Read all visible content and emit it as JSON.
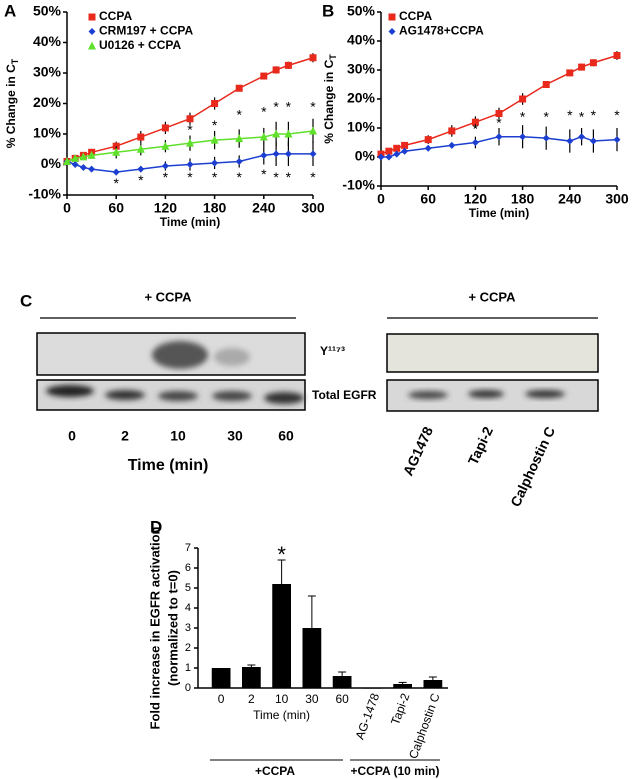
{
  "chart_data": [
    {
      "type": "line",
      "panel_label": "A",
      "xlabel": "Time (min)",
      "ylabel": "% Change in C",
      "ylabel_sub": "T",
      "x": [
        0,
        10,
        20,
        30,
        60,
        90,
        120,
        150,
        180,
        210,
        240,
        255,
        270,
        300
      ],
      "xlim": [
        0,
        300
      ],
      "xticks": [
        0,
        60,
        120,
        180,
        240,
        300
      ],
      "ylim": [
        -10,
        50
      ],
      "yticks": [
        {
          "value": -10,
          "label": "-10%"
        },
        {
          "value": 0,
          "label": "0%"
        },
        {
          "value": 10,
          "label": "10%"
        },
        {
          "value": 20,
          "label": "20%"
        },
        {
          "value": 30,
          "label": "30%"
        },
        {
          "value": 40,
          "label": "40%"
        },
        {
          "value": 50,
          "label": "50%"
        }
      ],
      "series": [
        {
          "name": "CCPA",
          "color": "#e8291c",
          "marker": "square",
          "values": [
            1,
            2,
            3,
            4,
            6,
            9,
            12,
            15,
            20,
            25,
            29,
            31,
            32.5,
            35
          ],
          "errors": [
            0.5,
            0.5,
            0.5,
            0.7,
            1.5,
            2,
            2,
            2,
            2,
            1,
            1,
            1.2,
            1.2,
            1.5
          ]
        },
        {
          "name": "CRM197 + CCPA",
          "color": "#1c3fd1",
          "marker": "diamond",
          "values": [
            1,
            0,
            -1,
            -1.5,
            -2.5,
            -1.5,
            -0.5,
            0,
            0.5,
            1,
            3,
            3.5,
            3.5,
            3.5
          ],
          "errors": [
            0.5,
            0.5,
            0.5,
            0.5,
            1,
            1,
            1.5,
            2,
            2,
            2,
            3,
            4,
            4,
            4
          ]
        },
        {
          "name": "U0126 + CCPA",
          "color": "#5fe02a",
          "marker": "triangle",
          "values": [
            1,
            2,
            2.5,
            3,
            4,
            5,
            6,
            7,
            8,
            8.5,
            9,
            10,
            10,
            11
          ],
          "errors": [
            0.5,
            0.5,
            0.5,
            0.7,
            2,
            2,
            2,
            2.5,
            3,
            3,
            3,
            4,
            4,
            4
          ]
        }
      ],
      "annotations": [
        {
          "text": "*",
          "x": 60,
          "y": -5.5
        },
        {
          "text": "*",
          "x": 90,
          "y": -4.5
        },
        {
          "text": "*",
          "x": 120,
          "y": -3.5
        },
        {
          "text": "*",
          "x": 150,
          "y": -3.5
        },
        {
          "text": "*",
          "x": 180,
          "y": -3.5
        },
        {
          "text": "*",
          "x": 210,
          "y": -3.5
        },
        {
          "text": "*",
          "x": 240,
          "y": -2.5
        },
        {
          "text": "*",
          "x": 255,
          "y": -3.5
        },
        {
          "text": "*",
          "x": 270,
          "y": -3.5
        },
        {
          "text": "*",
          "x": 300,
          "y": -3.5
        },
        {
          "text": "*",
          "x": 150,
          "y": 12
        },
        {
          "text": "*",
          "x": 180,
          "y": 13.5
        },
        {
          "text": "*",
          "x": 210,
          "y": 17
        },
        {
          "text": "*",
          "x": 240,
          "y": 18
        },
        {
          "text": "*",
          "x": 255,
          "y": 19.5
        },
        {
          "text": "*",
          "x": 270,
          "y": 19.5
        },
        {
          "text": "*",
          "x": 300,
          "y": 19.5
        }
      ]
    },
    {
      "type": "line",
      "panel_label": "B",
      "xlabel": "Time (min)",
      "ylabel": "% Change in C",
      "ylabel_sub": "T",
      "x": [
        0,
        10,
        20,
        30,
        60,
        90,
        120,
        150,
        180,
        210,
        240,
        255,
        270,
        300
      ],
      "xlim": [
        0,
        300
      ],
      "xticks": [
        0,
        60,
        120,
        180,
        240,
        300
      ],
      "ylim": [
        -10,
        50
      ],
      "yticks": [
        {
          "value": -10,
          "label": "-10%"
        },
        {
          "value": 0,
          "label": "0%"
        },
        {
          "value": 10,
          "label": "10%"
        },
        {
          "value": 20,
          "label": "20%"
        },
        {
          "value": 30,
          "label": "30%"
        },
        {
          "value": 40,
          "label": "40%"
        },
        {
          "value": 50,
          "label": "50%"
        }
      ],
      "series": [
        {
          "name": "CCPA",
          "color": "#e8291c",
          "marker": "square",
          "values": [
            1,
            2,
            3,
            4,
            6,
            9,
            12,
            15,
            20,
            25,
            29,
            31,
            32.5,
            35
          ],
          "errors": [
            0.5,
            0.5,
            0.5,
            0.7,
            1.5,
            2,
            2,
            2,
            2,
            1,
            1,
            1.2,
            1.2,
            1.5
          ]
        },
        {
          "name": "AG1478+CCPA",
          "color": "#1c3fd1",
          "marker": "diamond",
          "values": [
            0,
            0,
            1,
            2,
            3,
            4,
            5,
            7,
            7,
            6.5,
            5.5,
            7,
            5.5,
            6
          ],
          "errors": [
            0.5,
            0.5,
            0.5,
            0.5,
            1,
            1,
            2,
            3,
            4,
            4,
            4,
            3,
            4,
            4
          ]
        }
      ],
      "annotations": [
        {
          "text": "*",
          "x": 120,
          "y": 10.5
        },
        {
          "text": "*",
          "x": 150,
          "y": 12.5
        },
        {
          "text": "*",
          "x": 180,
          "y": 14.5
        },
        {
          "text": "*",
          "x": 210,
          "y": 14.5
        },
        {
          "text": "*",
          "x": 240,
          "y": 15
        },
        {
          "text": "*",
          "x": 255,
          "y": 14.5
        },
        {
          "text": "*",
          "x": 270,
          "y": 15
        },
        {
          "text": "*",
          "x": 300,
          "y": 15
        }
      ]
    },
    {
      "type": "bar",
      "panel_label": "D",
      "ylabel": "Fold increase in EGFR activation",
      "ylabel2": "(normalized to t=0)",
      "xlabel": "Time (min)",
      "categories": [
        "0",
        "2",
        "10",
        "30",
        "60",
        "AG-1478",
        "Tapi-2",
        "Calphostin C"
      ],
      "values": [
        1,
        1.05,
        5.2,
        3.0,
        0.6,
        0.02,
        0.2,
        0.4
      ],
      "errors": [
        0,
        0.1,
        1.2,
        1.6,
        0.2,
        0,
        0.08,
        0.15
      ],
      "color": "#000000",
      "ylim": [
        0,
        7
      ],
      "yticks": [
        0,
        1,
        2,
        3,
        4,
        5,
        6,
        7
      ],
      "groups": [
        "+CCPA",
        "+CCPA (10 min)"
      ],
      "annotations": [
        {
          "text": "*",
          "category": 2,
          "y": 6.6
        }
      ]
    }
  ],
  "blot_panel": {
    "panel_label": "C",
    "left_header": "+ CCPA",
    "right_header": "+ CCPA",
    "row_labels": [
      "Y¹¹⁷³",
      "Total EGFR"
    ],
    "left_lanes": [
      "0",
      "2",
      "10",
      "30",
      "60"
    ],
    "left_xlabel": "Time (min)",
    "right_lanes": [
      "AG1478",
      "Tapi-2",
      "Calphostin C"
    ]
  }
}
